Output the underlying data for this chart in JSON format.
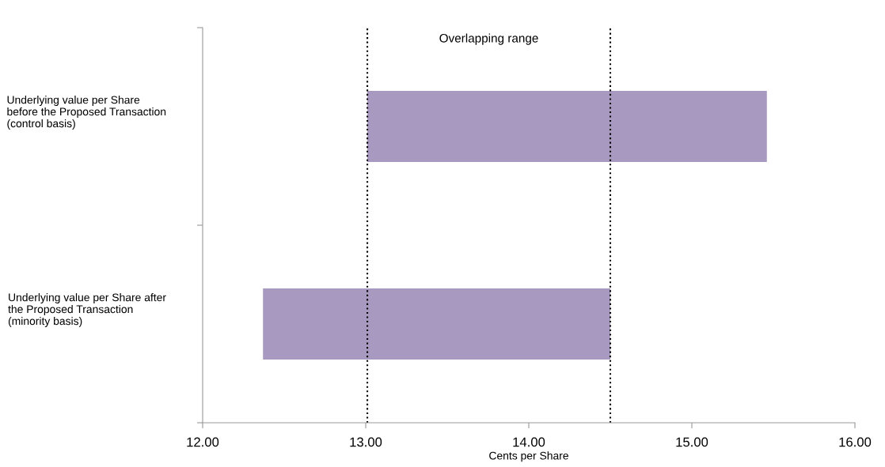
{
  "chart_data": {
    "type": "bar",
    "orientation": "horizontal",
    "xlabel": "Cents per Share",
    "categories": [
      "Underlying value per Share before the Proposed Transaction (control basis)",
      "Underlying value per Share after the Proposed Transaction (minority basis)"
    ],
    "base": [
      13.01,
      12.37
    ],
    "values": [
      2.45,
      2.13
    ],
    "color": "#a899c0",
    "xlim": [
      12,
      16
    ],
    "xticks": [
      {
        "value": 12,
        "label": "12.00"
      },
      {
        "value": 13,
        "label": "13.00"
      },
      {
        "value": 14,
        "label": "14.00"
      },
      {
        "value": 15,
        "label": "15.00"
      },
      {
        "value": 16,
        "label": "16.00"
      }
    ],
    "ref_lines": [
      {
        "axis": "x",
        "value": 13.01,
        "color": "#000000",
        "line_style": "dotted"
      },
      {
        "axis": "x",
        "value": 14.5,
        "color": "#000000",
        "line_style": "dotted"
      }
    ],
    "annotations": [
      "Overlapping range"
    ],
    "grid": false,
    "legend": false
  }
}
